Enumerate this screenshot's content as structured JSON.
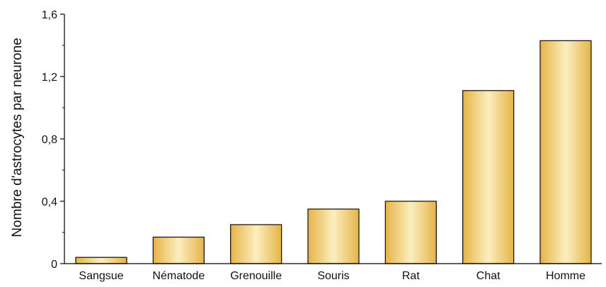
{
  "chart_data": {
    "type": "bar",
    "title": "",
    "xlabel": "",
    "ylabel": "Nombre d'astrocytes par neurone",
    "categories": [
      "Sangsue",
      "Nématode",
      "Grenouille",
      "Souris",
      "Rat",
      "Chat",
      "Homme"
    ],
    "values": [
      0.04,
      0.17,
      0.25,
      0.35,
      0.4,
      1.11,
      1.43
    ],
    "ylim": [
      0,
      1.6
    ],
    "yticks": [
      "0",
      "0,4",
      "0,8",
      "1,2",
      "1,6"
    ],
    "ytick_values": [
      0,
      0.4,
      0.8,
      1.2,
      1.6
    ],
    "grid": false,
    "legend": "none",
    "colors": {
      "bar_edge": "#1a1a1a",
      "bar_light": "#fbeec0",
      "bar_mid": "#f4d17e",
      "bar_dark": "#e6b447",
      "axis": "#000000"
    }
  }
}
